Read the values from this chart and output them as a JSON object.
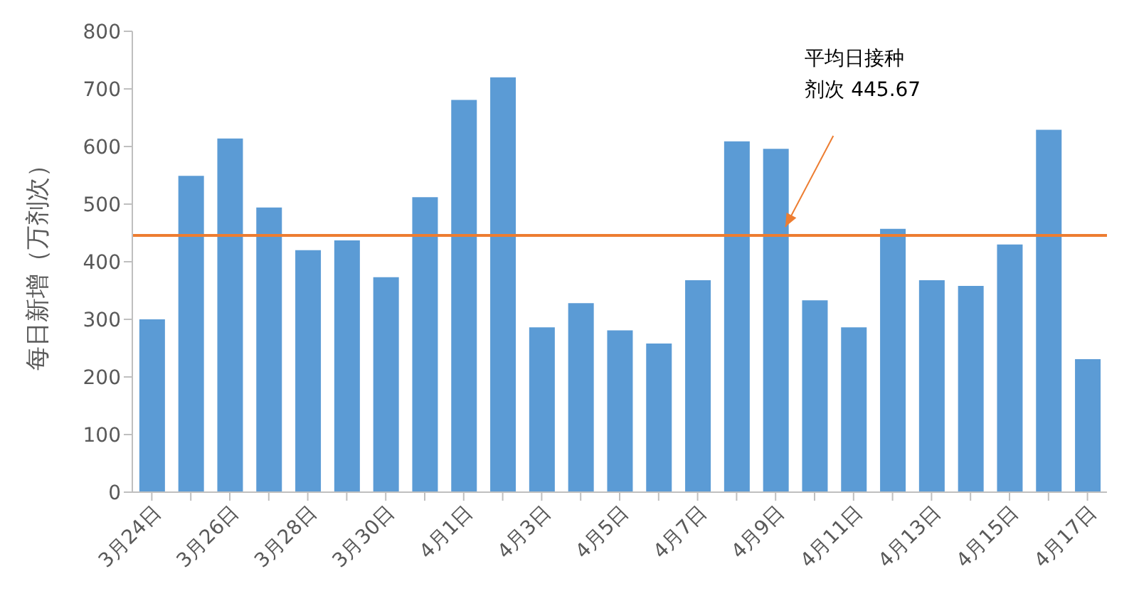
{
  "chart_data": {
    "type": "bar",
    "ylabel": "每日新增（万剂次）",
    "categories": [
      "3月24日",
      null,
      "3月26日",
      null,
      "3月28日",
      null,
      "3月30日",
      null,
      "4月1日",
      null,
      "4月3日",
      null,
      "4月5日",
      null,
      "4月7日",
      null,
      "4月9日",
      null,
      "4月11日",
      null,
      "4月13日",
      null,
      "4月15日",
      null,
      "4月17日"
    ],
    "values": [
      300,
      549,
      614,
      494,
      420,
      437,
      373,
      512,
      681,
      720,
      286,
      328,
      281,
      258,
      368,
      609,
      596,
      333,
      286,
      457,
      368,
      358,
      430,
      629,
      231
    ],
    "color": "#5b9bd5",
    "ylim": [
      0,
      800
    ],
    "yticks": [
      0,
      100,
      200,
      300,
      400,
      500,
      600,
      700,
      800
    ],
    "ref_lines": [
      {
        "axis": "y",
        "value": 445.67,
        "color": "#ed7d31"
      }
    ],
    "annotations": [
      "平均日接种剂次 445.67"
    ]
  }
}
